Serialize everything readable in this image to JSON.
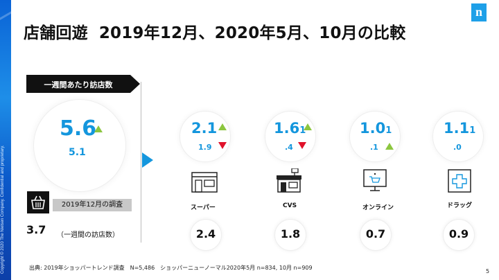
{
  "slide": {
    "title_part1": "店舗回遊",
    "title_part2": "2019年12月、2020年5月、10月の比較",
    "copyright": "Copyright © 2020 The Nielsen Company. Confidential and proprietary.",
    "logo": "n",
    "page_number": "5"
  },
  "overall": {
    "banner": "一週間あたり訪店数",
    "current": "5.6",
    "previous": "5.1",
    "survey_label": "2019年12月の調査",
    "baseline_value": "3.7",
    "baseline_caption": "（一週間の訪店数）"
  },
  "categories": [
    {
      "name": "スーパー",
      "main": "2.1",
      "main_tail": "",
      "prev": "1.9",
      "baseline": "2.4",
      "trend": "up",
      "prev_trend": "down",
      "icon": "supermarket-icon"
    },
    {
      "name": "CVS",
      "main": "1.6",
      "main_tail": "1",
      "prev": ".4",
      "baseline": "1.8",
      "trend": "up",
      "prev_trend": "down",
      "icon": "convenience-store-icon"
    },
    {
      "name": "オンライン",
      "main": "1.0",
      "main_tail": "1",
      "prev": ".1",
      "baseline": "0.7",
      "trend": "none",
      "prev_trend": "up",
      "icon": "online-shopping-icon"
    },
    {
      "name": "ドラッグ",
      "main": "1.1",
      "main_tail": "1",
      "prev": ".0",
      "baseline": "0.9",
      "trend": "none",
      "prev_trend": "none",
      "icon": "drugstore-icon"
    }
  ],
  "footer": {
    "source": "出典: 2019年ショッパートレンド調査　N=5,486　ショッパーニューノーマル2020年5月 n=834, 10月 n=909"
  },
  "colors": {
    "accent_blue": "#1496dd",
    "up_green": "#8cc63f",
    "down_red": "#e0122b"
  }
}
